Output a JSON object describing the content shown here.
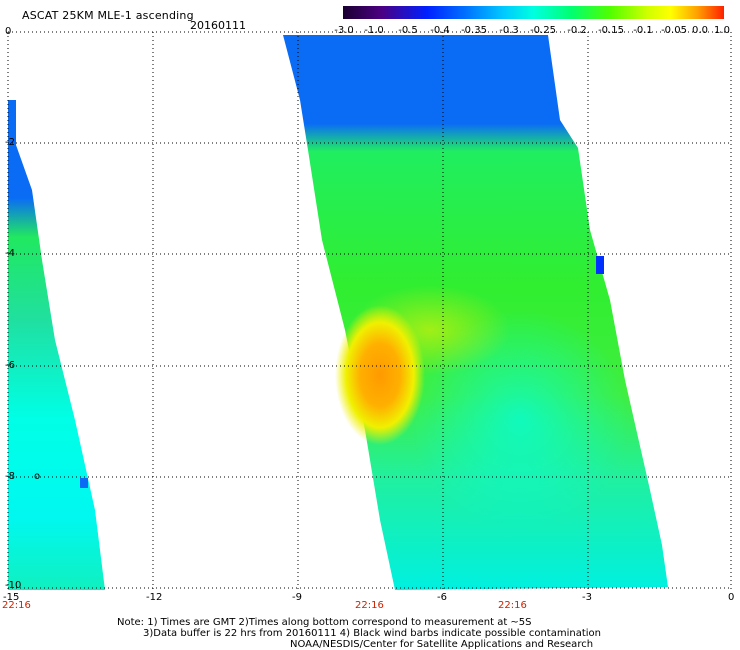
{
  "header": {
    "title": "ASCAT 25KM MLE-1 ascending",
    "date": "20160111"
  },
  "colorbar": {
    "labels": [
      "-3.0",
      "-1.0",
      "-0.5",
      "-0.4",
      "-0.35",
      "-0.3",
      "-0.25",
      "-0.2",
      "-0.15",
      "-0.1",
      "-0.05",
      "0.0",
      "1.0"
    ],
    "colors": [
      "#1a0030",
      "#4b0082",
      "#0020ff",
      "#0060ff",
      "#00a0ff",
      "#00e0ff",
      "#00ffc0",
      "#00ff60",
      "#40ff00",
      "#b0ff00",
      "#ffff00",
      "#ffa000",
      "#ff2000"
    ]
  },
  "axes": {
    "x_labels": [
      "-15",
      "-12",
      "-9",
      "-6",
      "-3",
      "0"
    ],
    "y_labels": [
      "0",
      "-2",
      "-4",
      "-6",
      "-8",
      "-10"
    ],
    "time_labels": [
      "22:16",
      "22:16",
      "22:16"
    ]
  },
  "annotation_marker": "o",
  "footer": {
    "line1": "Note: 1) Times are GMT 2)Times along bottom correspond to measurement at ~5S",
    "line2": "3)Data buffer is 22 hrs from 20160111 4) Black wind barbs indicate possible contamination",
    "line3": "NOAA/NESDIS/Center for Satellite Applications and Research"
  },
  "colors": {
    "swath_blue": "#0a6cf5",
    "swath_cyan": "#00ffe6",
    "swath_green": "#20ee20",
    "swath_yellow": "#f0f000",
    "swath_orange": "#ff9a00",
    "time_label": "#cc2200"
  }
}
